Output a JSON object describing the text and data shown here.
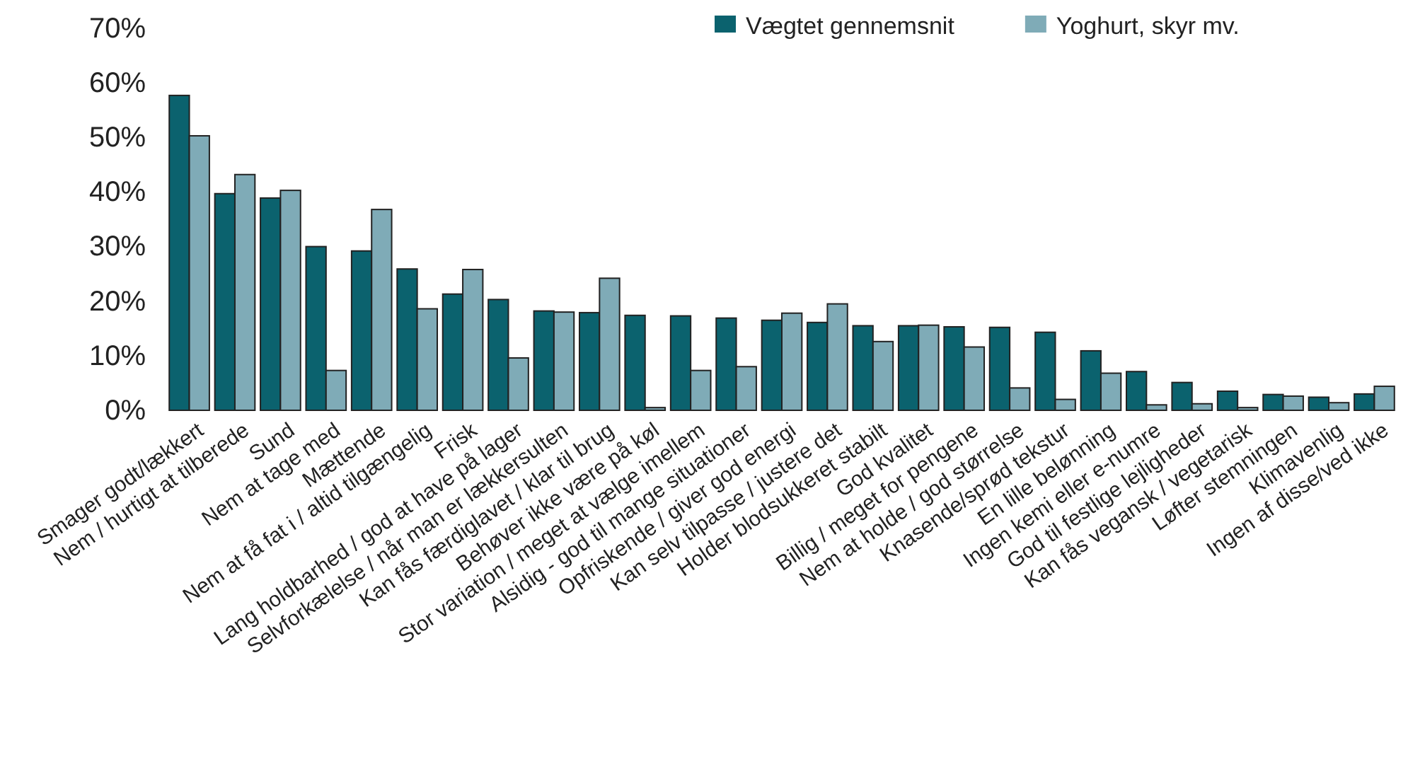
{
  "chart_data": {
    "type": "bar",
    "categories": [
      "Smager godt/lækkert",
      "Nem / hurtigt at tilberede",
      "Sund",
      "Nem at tage med",
      "Mættende",
      "Nem at få fat i / altid tilgængelig",
      "Frisk",
      "Lang holdbarhed / god at have på lager",
      "Selvforkælelse / når man er lækkersulten",
      "Kan fås færdiglavet / klar til brug",
      "Behøver ikke være på køl",
      "Stor variation / meget at vælge imellem",
      "Alsidig - god til mange situationer",
      "Opfriskende / giver god energi",
      "Kan selv tilpasse / justere det",
      "Holder blodsukkeret stabilt",
      "God kvalitet",
      "Billig / meget for pengene",
      "Nem at holde / god størrelse",
      "Knasende/sprød tekstur",
      "En lille belønning",
      "Ingen kemi eller e-numre",
      "God til festlige lejligheder",
      "Kan fås vegansk / vegetarisk",
      "Løfter stemningen",
      "Klimavenlig",
      "Ingen af disse/ved ikke"
    ],
    "series": [
      {
        "name": "Vægtet gennemsnit",
        "color": "#0b626e",
        "values": [
          57.7,
          39.7,
          38.9,
          30.0,
          29.2,
          25.9,
          21.3,
          20.3,
          18.2,
          17.9,
          17.4,
          17.3,
          16.9,
          16.5,
          16.1,
          15.5,
          15.5,
          15.3,
          15.2,
          14.3,
          10.9,
          7.1,
          5.1,
          3.5,
          2.9,
          2.4,
          3.0
        ]
      },
      {
        "name": "Yoghurt, skyr mv.",
        "color": "#7fabb7",
        "values": [
          50.3,
          43.2,
          40.3,
          7.3,
          36.8,
          18.6,
          25.8,
          9.6,
          18.0,
          24.2,
          0.5,
          7.3,
          8.0,
          17.8,
          19.5,
          12.6,
          15.6,
          11.6,
          4.1,
          2.0,
          6.8,
          1.0,
          1.2,
          0.5,
          2.6,
          1.4,
          4.4
        ]
      }
    ],
    "ylim": [
      0,
      70
    ],
    "yticks": [
      {
        "value": 0,
        "label": "0%"
      },
      {
        "value": 10,
        "label": "10%"
      },
      {
        "value": 20,
        "label": "20%"
      },
      {
        "value": 30,
        "label": "30%"
      },
      {
        "value": 40,
        "label": "40%"
      },
      {
        "value": 50,
        "label": "50%"
      },
      {
        "value": 60,
        "label": "60%"
      },
      {
        "value": 70,
        "label": "70%"
      }
    ],
    "legend": "top right"
  }
}
